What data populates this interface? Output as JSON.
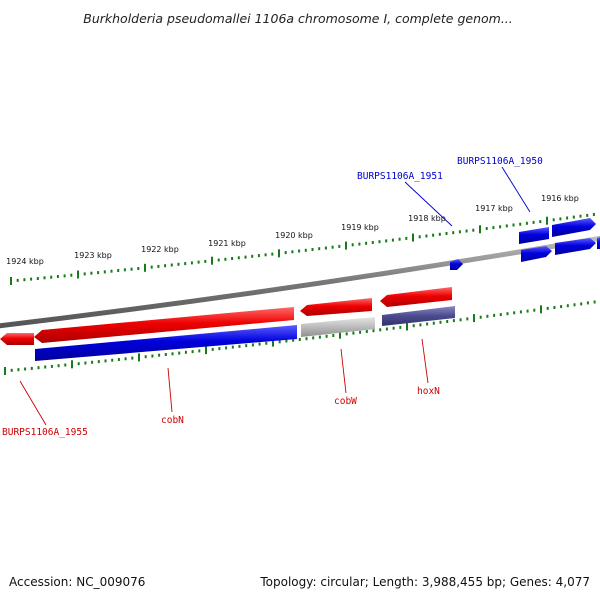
{
  "title": "Burkholderia pseudomallei 1106a chromosome I, complete genom...",
  "footer": {
    "accession": "Accession: NC_009076",
    "topology": "Topology: circular; Length: 3,988,455 bp; Genes: 4,077"
  },
  "scale_labels": [
    "1924 kbp",
    "1923 kbp",
    "1922 kbp",
    "1921 kbp",
    "1920 kbp",
    "1919 kbp",
    "1918 kbp",
    "1917 kbp",
    "1916 kbp"
  ],
  "gene_labels": [
    {
      "text": "BURPS1106A_1950",
      "color": "#0000cc"
    },
    {
      "text": "BURPS1106A_1951",
      "color": "#0000cc"
    },
    {
      "text": "BURPS1106A_1955",
      "color": "#cc0000"
    },
    {
      "text": "cobN",
      "color": "#cc0000"
    },
    {
      "text": "cobW",
      "color": "#cc0000"
    },
    {
      "text": "hoxN",
      "color": "#cc0000"
    }
  ],
  "colors": {
    "forward": "#ee0000",
    "reverse": "#0000dd",
    "grey": "#bbbbbb",
    "purple": "#4b4a8e",
    "ticks": "#1a7a1a",
    "backbone": "#777777"
  }
}
